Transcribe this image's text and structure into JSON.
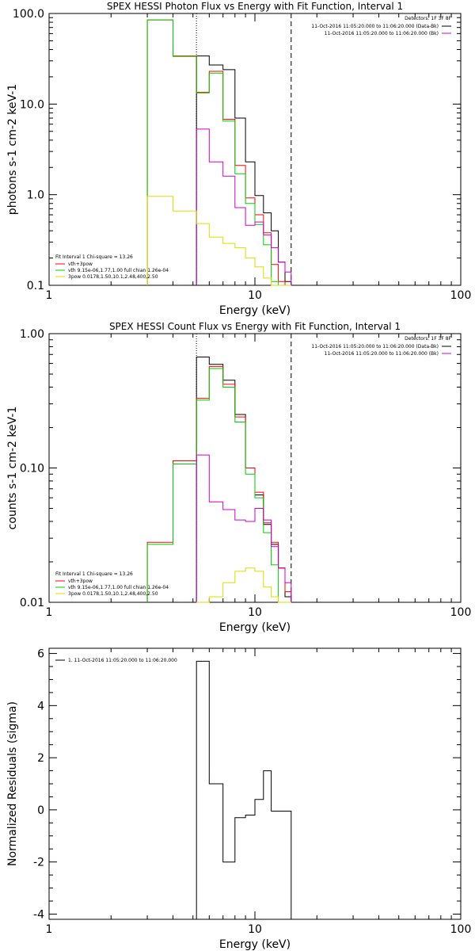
{
  "chart_data": [
    {
      "type": "line",
      "title": "SPEX HESSI Photon Flux vs Energy with Fit Function, Interval 1",
      "xlabel": "Energy (keV)",
      "ylabel": "photons s-1 cm-2 keV-1",
      "xscale": "log",
      "yscale": "log",
      "xlim": [
        1,
        100
      ],
      "ylim": [
        0.1,
        100
      ],
      "xticks": [
        "1",
        "10",
        "100"
      ],
      "yticks": [
        "0.1",
        "1.0",
        "10.0",
        "100.0"
      ],
      "vlines": [
        {
          "x": 5.2,
          "style": "dotted"
        },
        {
          "x": 15.0,
          "style": "dashed"
        }
      ],
      "legend_right": {
        "header": "Detectors: 1F 3F 8F",
        "entries": [
          {
            "text": "11-Oct-2016 11:05:20.000 to 11:06:20.000 (Data-Bk)",
            "color": "#000000"
          },
          {
            "text": "11-Oct-2016 11:05:20.000 to 11:06:20.000 (Bk)",
            "color": "#cc00cc"
          }
        ]
      },
      "legend_left": {
        "header": "Fit Interval 1    Chi-square = 13.26",
        "entries": [
          {
            "text": "vth+3pow",
            "color": "#ff0000"
          },
          {
            "text": "vth 9.15e-06,1.77,1.00  full chian 1.26e-04",
            "color": "#00cc00"
          },
          {
            "text": "3pow 0.0178,1.50,10.1,2.48,400,2.50",
            "color": "#dddd00"
          }
        ]
      },
      "edges": [
        3,
        4,
        5.2,
        6,
        7,
        8,
        9,
        10,
        11,
        12,
        13,
        14,
        15
      ],
      "series": [
        {
          "key": "data",
          "color": "#000000",
          "start": 2,
          "values": [
            34,
            27,
            24,
            7.0,
            2.3,
            0.98,
            0.63,
            0.4,
            0.18,
            0.11
          ]
        },
        {
          "key": "vth_3pow",
          "color": "#ff0000",
          "start": 0,
          "values": [
            85,
            34,
            13.5,
            23,
            6.8,
            2.1,
            0.92,
            0.6,
            0.38,
            0.17,
            0.11,
            0.1
          ]
        },
        {
          "key": "vth",
          "color": "#00cc00",
          "start": 0,
          "values": [
            85,
            33.5,
            13.3,
            22,
            6.5,
            1.7,
            0.8,
            0.47,
            0.28,
            0.11,
            0.1,
            0.1
          ]
        },
        {
          "key": "bk",
          "color": "#cc00cc",
          "start": 2,
          "values": [
            5.3,
            2.3,
            1.6,
            0.72,
            0.46,
            0.5,
            0.36,
            0.26,
            0.18,
            0.14
          ]
        },
        {
          "key": "pow",
          "color": "#dddd00",
          "start": 0,
          "values": [
            0.96,
            0.66,
            0.48,
            0.34,
            0.29,
            0.26,
            0.2,
            0.16,
            0.12,
            0.1,
            0.1,
            0.1
          ]
        }
      ]
    },
    {
      "type": "line",
      "title": "SPEX HESSI Count Flux vs Energy with Fit Function, Interval 1",
      "xlabel": "Energy (keV)",
      "ylabel": "counts s-1 cm-2 keV-1",
      "xscale": "log",
      "yscale": "log",
      "xlim": [
        1,
        100
      ],
      "ylim": [
        0.01,
        1.0
      ],
      "xticks": [
        "1",
        "10",
        "100"
      ],
      "yticks": [
        "0.01",
        "0.10",
        "1.00"
      ],
      "vlines": [
        {
          "x": 5.2,
          "style": "dotted"
        },
        {
          "x": 15.0,
          "style": "dashed"
        }
      ],
      "legend_right": {
        "header": "Detectors: 1F 3F 8F",
        "entries": [
          {
            "text": "11-Oct-2016 11:05:20.000 to 11:06:20.000 (Data-Bk)",
            "color": "#000000"
          },
          {
            "text": "11-Oct-2016 11:05:20.000 to 11:06:20.000 (Bk)",
            "color": "#cc00cc"
          }
        ]
      },
      "legend_left": {
        "header": "Fit Interval 1    Chi-square = 13.26",
        "entries": [
          {
            "text": "vth+3pow",
            "color": "#ff0000"
          },
          {
            "text": "vth 9.15e-06,1.77,1.00  full chian 1.26e-04",
            "color": "#00cc00"
          },
          {
            "text": "3pow 0.0178,1.50,10.1,2.48,400,2.50",
            "color": "#dddd00"
          }
        ]
      },
      "edges": [
        3,
        4,
        5.2,
        6,
        7,
        8,
        9,
        10,
        11,
        12,
        13,
        14,
        15
      ],
      "series": [
        {
          "key": "data",
          "color": "#000000",
          "start": 2,
          "values": [
            0.67,
            0.59,
            0.45,
            0.25,
            0.1,
            0.063,
            0.038,
            0.027,
            0.018,
            0.011
          ]
        },
        {
          "key": "vth_3pow",
          "color": "#ff0000",
          "start": 0,
          "values": [
            0.028,
            0.113,
            0.33,
            0.57,
            0.42,
            0.24,
            0.1,
            0.066,
            0.039,
            0.028,
            0.018,
            0.012
          ]
        },
        {
          "key": "vth",
          "color": "#00cc00",
          "start": 0,
          "values": [
            0.027,
            0.107,
            0.32,
            0.55,
            0.4,
            0.22,
            0.09,
            0.06,
            0.033,
            0.019,
            0.01,
            0.01
          ]
        },
        {
          "key": "bk",
          "color": "#cc00cc",
          "start": 2,
          "values": [
            0.125,
            0.056,
            0.049,
            0.041,
            0.04,
            0.05,
            0.041,
            0.026,
            0.018,
            0.014
          ]
        },
        {
          "key": "pow",
          "color": "#dddd00",
          "start": 2,
          "values": [
            0.01,
            0.011,
            0.014,
            0.017,
            0.018,
            0.017,
            0.013,
            0.011,
            0.01,
            0.01
          ]
        }
      ]
    },
    {
      "type": "line",
      "title": "",
      "xlabel": "Energy (keV)",
      "ylabel": "Normalized Residuals (sigma)",
      "xscale": "log",
      "yscale": "linear",
      "xlim": [
        1,
        100
      ],
      "ylim": [
        -4.2,
        6.2
      ],
      "xticks": [
        "1",
        "10",
        "100"
      ],
      "yticks": [
        "-4",
        "-2",
        "0",
        "2",
        "4",
        "6"
      ],
      "legend": {
        "text": "1. 11-Oct-2016 11:05:20.000 to 11:06:20.000",
        "color": "#000000"
      },
      "edges": [
        5.2,
        6,
        7,
        8,
        9,
        10,
        11,
        12,
        13,
        15
      ],
      "series": [
        {
          "key": "residuals",
          "color": "#000000",
          "start": 0,
          "values": [
            5.7,
            1.0,
            -2.0,
            -0.3,
            -0.2,
            0.4,
            1.5,
            -0.05,
            -0.05
          ]
        }
      ]
    }
  ]
}
